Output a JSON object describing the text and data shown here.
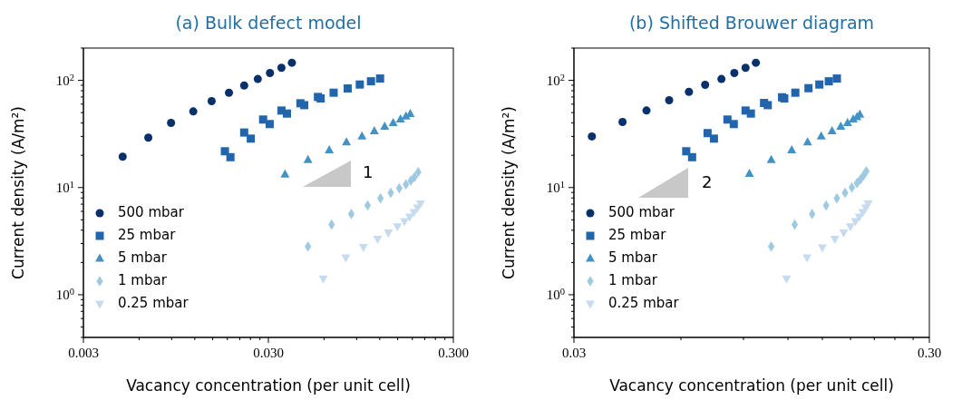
{
  "chart_data": [
    {
      "type": "scatter",
      "title": "(a) Bulk defect model",
      "xlabel": "Vacancy concentration (per unit cell)",
      "ylabel": "Current density (A/m²)",
      "log": "xy",
      "legend": "bottom left",
      "xlim": [
        0.003,
        0.3
      ],
      "ylim": [
        0.4,
        200
      ],
      "xticks": [
        {
          "value": 0.003,
          "label": "0.003"
        },
        {
          "value": 0.006,
          "label": null
        },
        {
          "value": 0.009,
          "label": null
        },
        {
          "value": 0.012,
          "label": null
        },
        {
          "value": 0.015,
          "label": null
        },
        {
          "value": 0.018,
          "label": null
        },
        {
          "value": 0.021,
          "label": null
        },
        {
          "value": 0.024,
          "label": null
        },
        {
          "value": 0.027,
          "label": null
        },
        {
          "value": 0.03,
          "label": "0.030"
        },
        {
          "value": 0.06,
          "label": null
        },
        {
          "value": 0.09,
          "label": null
        },
        {
          "value": 0.12,
          "label": null
        },
        {
          "value": 0.15,
          "label": null
        },
        {
          "value": 0.18,
          "label": null
        },
        {
          "value": 0.21,
          "label": null
        },
        {
          "value": 0.24,
          "label": null
        },
        {
          "value": 0.27,
          "label": null
        },
        {
          "value": 0.3,
          "label": "0.300"
        }
      ],
      "yticks": [
        {
          "value": 0.4,
          "label": null
        },
        {
          "value": 0.5,
          "label": null
        },
        {
          "value": 0.6,
          "label": null
        },
        {
          "value": 0.7,
          "label": null
        },
        {
          "value": 0.8,
          "label": null
        },
        {
          "value": 0.9,
          "label": null
        },
        {
          "value": 1,
          "label": "10$^{0}$"
        },
        {
          "value": 2,
          "label": null
        },
        {
          "value": 3,
          "label": null
        },
        {
          "value": 4,
          "label": null
        },
        {
          "value": 5,
          "label": null
        },
        {
          "value": 6,
          "label": null
        },
        {
          "value": 7,
          "label": null
        },
        {
          "value": 8,
          "label": null
        },
        {
          "value": 9,
          "label": null
        },
        {
          "value": 10,
          "label": "10$^{1}$"
        },
        {
          "value": 20,
          "label": null
        },
        {
          "value": 30,
          "label": null
        },
        {
          "value": 40,
          "label": null
        },
        {
          "value": 50,
          "label": null
        },
        {
          "value": 60,
          "label": null
        },
        {
          "value": 70,
          "label": null
        },
        {
          "value": 80,
          "label": null
        },
        {
          "value": 90,
          "label": null
        },
        {
          "value": 100,
          "label": "10$^{2}$"
        },
        {
          "value": 200,
          "label": null
        }
      ],
      "annotations": [
        "1"
      ],
      "series": [
        {
          "name": "500 mbar",
          "color": "#08306b",
          "marker": "circle",
          "x": [
            0.00489,
            0.00673,
            0.00893,
            0.01178,
            0.0148,
            0.01837,
            0.0222,
            0.0263,
            0.0306,
            0.0353,
            0.0402
          ],
          "values": [
            19.4,
            29.2,
            40.1,
            51.3,
            64.0,
            76.7,
            89.6,
            103,
            117,
            131,
            146
          ]
        },
        {
          "name": "25 mbar",
          "color": "#2166ac",
          "marker": "square",
          "x": [
            0.01746,
            0.01871,
            0.0222,
            0.0241,
            0.0281,
            0.0305,
            0.0353,
            0.0378,
            0.0447,
            0.0469,
            0.0556,
            0.0575,
            0.0676,
            0.0805,
            0.0936,
            0.1076,
            0.1205
          ],
          "values": [
            21.8,
            19.2,
            32.6,
            28.6,
            43.1,
            39.1,
            52.3,
            49.0,
            61.1,
            58.7,
            70.0,
            67.8,
            76.7,
            84.0,
            91.4,
            98.0,
            104
          ]
        },
        {
          "name": "5 mbar",
          "color": "#4292c6",
          "marker": "triangle",
          "x": [
            0.0369,
            0.0491,
            0.064,
            0.0793,
            0.0962,
            0.1122,
            0.1276,
            0.1419,
            0.1553,
            0.1663,
            0.1754
          ],
          "values": [
            13.3,
            18.2,
            22.4,
            26.5,
            30.2,
            33.7,
            37.1,
            40.1,
            43.4,
            46.2,
            48.7
          ]
        },
        {
          "name": "1 mbar",
          "color": "#9ecae1",
          "marker": "diamond",
          "x": [
            0.0491,
            0.0659,
            0.0842,
            0.1032,
            0.1211,
            0.1377,
            0.1531,
            0.1663,
            0.1766,
            0.1849,
            0.1936
          ],
          "values": [
            2.82,
            4.52,
            5.67,
            6.81,
            7.94,
            8.93,
            9.84,
            10.7,
            11.6,
            12.5,
            13.9
          ]
        },
        {
          "name": "0.25 mbar",
          "color": "#c6dbef",
          "marker": "triangle-down",
          "x": [
            0.0594,
            0.0786,
            0.0979,
            0.1169,
            0.1336,
            0.1496,
            0.1633,
            0.1741,
            0.1836,
            0.192,
            0.1994
          ],
          "values": [
            1.41,
            2.22,
            2.78,
            3.31,
            3.79,
            4.32,
            4.83,
            5.32,
            5.86,
            6.46,
            7.07
          ]
        }
      ]
    },
    {
      "type": "scatter",
      "title": "(b) Shifted Brouwer diagram",
      "xlabel": "Vacancy concentration (per unit cell)",
      "ylabel": "Current density (A/m²)",
      "log": "xy",
      "legend": "bottom left",
      "xlim": [
        0.03,
        0.3
      ],
      "ylim": [
        0.4,
        200
      ],
      "xticks": [
        {
          "value": 0.03,
          "label": "0.03"
        },
        {
          "value": 0.06,
          "label": null
        },
        {
          "value": 0.09,
          "label": null
        },
        {
          "value": 0.12,
          "label": null
        },
        {
          "value": 0.15,
          "label": null
        },
        {
          "value": 0.18,
          "label": null
        },
        {
          "value": 0.21,
          "label": null
        },
        {
          "value": 0.24,
          "label": null
        },
        {
          "value": 0.27,
          "label": null
        },
        {
          "value": 0.3,
          "label": "0.30"
        }
      ],
      "yticks": [
        {
          "value": 0.4,
          "label": null
        },
        {
          "value": 0.5,
          "label": null
        },
        {
          "value": 0.6,
          "label": null
        },
        {
          "value": 0.7,
          "label": null
        },
        {
          "value": 0.8,
          "label": null
        },
        {
          "value": 0.9,
          "label": null
        },
        {
          "value": 1,
          "label": "10$^{0}$"
        },
        {
          "value": 2,
          "label": null
        },
        {
          "value": 3,
          "label": null
        },
        {
          "value": 4,
          "label": null
        },
        {
          "value": 5,
          "label": null
        },
        {
          "value": 6,
          "label": null
        },
        {
          "value": 7,
          "label": null
        },
        {
          "value": 8,
          "label": null
        },
        {
          "value": 9,
          "label": null
        },
        {
          "value": 10,
          "label": "10$^{1}$"
        },
        {
          "value": 20,
          "label": null
        },
        {
          "value": 30,
          "label": null
        },
        {
          "value": 40,
          "label": null
        },
        {
          "value": 50,
          "label": null
        },
        {
          "value": 60,
          "label": null
        },
        {
          "value": 70,
          "label": null
        },
        {
          "value": 80,
          "label": null
        },
        {
          "value": 90,
          "label": null
        },
        {
          "value": 100,
          "label": "10$^{2}$"
        },
        {
          "value": 200,
          "label": null
        }
      ],
      "annotations": [
        "2"
      ],
      "series": [
        {
          "name": "500 mbar",
          "color": "#08306b",
          "marker": "circle",
          "x": [
            0.0337,
            0.0411,
            0.048,
            0.0556,
            0.0632,
            0.0702,
            0.078,
            0.0848,
            0.0912,
            0.0975
          ],
          "values": [
            30.0,
            40.9,
            52.3,
            65.2,
            78.2,
            90.8,
            103,
            117,
            131,
            146
          ]
        },
        {
          "name": "25 mbar",
          "color": "#2166ac",
          "marker": "square",
          "x": [
            0.0621,
            0.0645,
            0.0713,
            0.0743,
            0.0811,
            0.0845,
            0.0912,
            0.0944,
            0.1028,
            0.1053,
            0.1155,
            0.1172,
            0.1259,
            0.1371,
            0.1471,
            0.1564,
            0.1648
          ],
          "values": [
            21.8,
            19.2,
            32.2,
            28.6,
            43.1,
            39.1,
            52.3,
            49.0,
            61.5,
            58.7,
            69.5,
            67.8,
            76.7,
            84.5,
            91.4,
            98.0,
            104
          ]
        },
        {
          "name": "5 mbar",
          "color": "#4292c6",
          "marker": "triangle",
          "x": [
            0.0935,
            0.1077,
            0.123,
            0.1363,
            0.1489,
            0.1597,
            0.169,
            0.1766,
            0.1831,
            0.1877,
            0.1912
          ],
          "values": [
            13.5,
            18.2,
            22.4,
            26.5,
            30.2,
            33.7,
            37.1,
            40.1,
            43.4,
            45.7,
            48.1
          ]
        },
        {
          "name": "1 mbar",
          "color": "#9ecae1",
          "marker": "diamond",
          "x": [
            0.1077,
            0.1254,
            0.1404,
            0.1537,
            0.1648,
            0.1738,
            0.1816,
            0.1877,
            0.1919,
            0.196,
            0.1994
          ],
          "values": [
            2.82,
            4.52,
            5.67,
            6.81,
            7.94,
            8.93,
            10.0,
            11.0,
            11.9,
            13.0,
            14.2
          ]
        },
        {
          "name": "0.25 mbar",
          "color": "#c6dbef",
          "marker": "triangle-down",
          "x": [
            0.1189,
            0.1358,
            0.15,
            0.1627,
            0.1722,
            0.1799,
            0.1858,
            0.1905,
            0.195,
            0.1986,
            0.2018
          ],
          "values": [
            1.41,
            2.22,
            2.75,
            3.31,
            3.79,
            4.32,
            4.83,
            5.32,
            5.86,
            6.46,
            7.07
          ]
        }
      ]
    }
  ]
}
